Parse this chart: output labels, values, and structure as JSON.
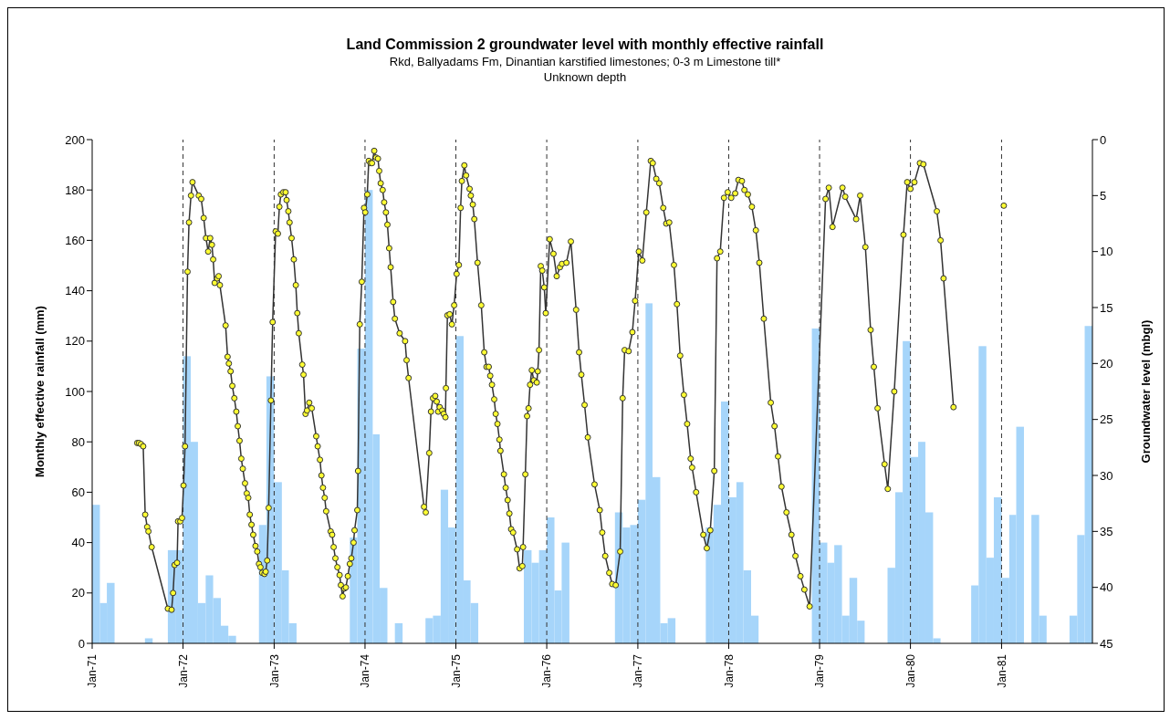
{
  "chart_data": {
    "type": "bar",
    "title": "Land Commission 2 groundwater level with monthly effective rainfall",
    "subtitle": "Rkd, Ballyadams Fm, Dinantian karstified limestones; 0-3 m Limestone till*\nUnknown depth",
    "ylabel": "Monthly effective rainfall (mm)",
    "y2label": "Groundwater level (mbgl)",
    "xlim": [
      "1971-01-01",
      "1982-01-01"
    ],
    "xticks": [
      {
        "value": "1971-01",
        "label": "Jan-71"
      },
      {
        "value": "1972-01",
        "label": "Jan-72"
      },
      {
        "value": "1973-01",
        "label": "Jan-73"
      },
      {
        "value": "1974-01",
        "label": "Jan-74"
      },
      {
        "value": "1975-01",
        "label": "Jan-75"
      },
      {
        "value": "1976-01",
        "label": "Jan-76"
      },
      {
        "value": "1977-01",
        "label": "Jan-77"
      },
      {
        "value": "1978-01",
        "label": "Jan-78"
      },
      {
        "value": "1979-01",
        "label": "Jan-79"
      },
      {
        "value": "1980-01",
        "label": "Jan-80"
      },
      {
        "value": "1981-01",
        "label": "Jan-81"
      }
    ],
    "ylim": [
      0,
      200
    ],
    "yticks": [
      0,
      20,
      40,
      60,
      80,
      100,
      120,
      140,
      160,
      180,
      200
    ],
    "y2lim": [
      45,
      0
    ],
    "y2ticks": [
      0,
      5,
      10,
      15,
      20,
      25,
      30,
      35,
      40,
      45
    ],
    "grid": false,
    "legend": false,
    "marker": "circle",
    "ref_lines": [
      {
        "axis": "x",
        "value": "1972-01",
        "line_style": "dashed",
        "color": "#333333"
      },
      {
        "axis": "x",
        "value": "1973-01",
        "line_style": "dashed",
        "color": "#333333"
      },
      {
        "axis": "x",
        "value": "1974-01",
        "line_style": "dashed",
        "color": "#333333"
      },
      {
        "axis": "x",
        "value": "1975-01",
        "line_style": "dashed",
        "color": "#333333"
      },
      {
        "axis": "x",
        "value": "1976-01",
        "line_style": "dashed",
        "color": "#333333"
      },
      {
        "axis": "x",
        "value": "1977-01",
        "line_style": "dashed",
        "color": "#333333"
      },
      {
        "axis": "x",
        "value": "1978-01",
        "line_style": "dashed",
        "color": "#333333"
      },
      {
        "axis": "x",
        "value": "1979-01",
        "line_style": "dashed",
        "color": "#333333"
      },
      {
        "axis": "x",
        "value": "1980-01",
        "line_style": "dashed",
        "color": "#333333"
      },
      {
        "axis": "x",
        "value": "1981-01",
        "line_style": "dashed",
        "color": "#333333"
      }
    ],
    "series": [
      {
        "color": "#a6d5fa",
        "x": [
          "1971-01",
          "1971-02",
          "1971-03",
          "1971-04",
          "1971-05",
          "1971-06",
          "1971-07",
          "1971-08",
          "1971-09",
          "1971-10",
          "1971-11",
          "1971-12",
          "1972-01",
          "1972-02",
          "1972-03",
          "1972-04",
          "1972-05",
          "1972-06",
          "1972-07",
          "1972-08",
          "1972-09",
          "1972-10",
          "1972-11",
          "1972-12",
          "1973-01",
          "1973-02",
          "1973-03",
          "1973-04",
          "1973-05",
          "1973-06",
          "1973-07",
          "1973-08",
          "1973-09",
          "1973-10",
          "1973-11",
          "1973-12",
          "1974-01",
          "1974-02",
          "1974-03",
          "1974-04",
          "1974-05",
          "1974-06",
          "1974-07",
          "1974-08",
          "1974-09",
          "1974-10",
          "1974-11",
          "1974-12",
          "1975-01",
          "1975-02",
          "1975-03",
          "1975-04",
          "1975-05",
          "1975-06",
          "1975-07",
          "1975-08",
          "1975-09",
          "1975-10",
          "1975-11",
          "1975-12",
          "1976-01",
          "1976-02",
          "1976-03",
          "1976-04",
          "1976-05",
          "1976-06",
          "1976-07",
          "1976-08",
          "1976-09",
          "1976-10",
          "1976-11",
          "1976-12",
          "1977-01",
          "1977-02",
          "1977-03",
          "1977-04",
          "1977-05",
          "1977-06",
          "1977-07",
          "1977-08",
          "1977-09",
          "1977-10",
          "1977-11",
          "1977-12",
          "1978-01",
          "1978-02",
          "1978-03",
          "1978-04",
          "1978-05",
          "1978-06",
          "1978-07",
          "1978-08",
          "1978-09",
          "1978-10",
          "1978-11",
          "1978-12",
          "1979-01",
          "1979-02",
          "1979-03",
          "1979-04",
          "1979-05",
          "1979-06",
          "1979-07",
          "1979-08",
          "1979-09",
          "1979-10",
          "1979-11",
          "1979-12",
          "1980-01",
          "1980-02",
          "1980-03",
          "1980-04",
          "1980-05",
          "1980-06",
          "1980-07",
          "1980-08",
          "1980-09",
          "1980-10",
          "1980-11",
          "1980-12",
          "1981-01",
          "1981-02",
          "1981-03",
          "1981-04",
          "1981-05",
          "1981-06",
          "1981-07",
          "1981-08",
          "1981-09",
          "1981-10",
          "1981-11",
          "1981-12"
        ],
        "values": [
          55,
          16,
          24,
          0,
          0,
          0,
          0,
          2,
          0,
          0,
          37,
          37,
          114,
          80,
          16,
          27,
          18,
          7,
          3,
          0,
          0,
          0,
          47,
          106,
          64,
          29,
          8,
          0,
          0,
          0,
          0,
          0,
          0,
          0,
          42,
          117,
          180,
          83,
          22,
          0,
          8,
          0,
          0,
          0,
          10,
          11,
          61,
          46,
          122,
          25,
          16,
          0,
          0,
          0,
          0,
          0,
          0,
          37,
          32,
          37,
          50,
          21,
          40,
          0,
          0,
          0,
          0,
          0,
          0,
          52,
          46,
          47,
          57,
          135,
          66,
          8,
          10,
          0,
          0,
          0,
          0,
          46,
          55,
          96,
          58,
          64,
          29,
          11,
          0,
          0,
          0,
          0,
          0,
          0,
          0,
          125,
          40,
          32,
          39,
          11,
          26,
          9,
          0,
          0,
          0,
          30,
          60,
          120,
          74,
          80,
          52,
          2,
          0,
          0,
          0,
          0,
          23,
          118,
          34,
          58,
          26,
          51,
          86,
          0,
          51,
          11,
          0,
          0,
          0,
          11,
          43,
          126
        ]
      },
      {
        "type": "line",
        "axis": "y2",
        "color": "#333333",
        "x": [
          "1971-07-01",
          "1971-07-08",
          "1971-07-16",
          "1971-07-25",
          "1971-08-02",
          "1971-08-10",
          "1971-08-15",
          "1971-08-28",
          "1971-11-01",
          "1971-11-16",
          "1971-11-22",
          "1971-11-28",
          "1971-12-08",
          "1971-12-12",
          "1971-12-21",
          "1971-12-28",
          "1972-01-03",
          "1972-01-09",
          "1972-01-19",
          "1972-01-25",
          "1972-02-02",
          "1972-02-08",
          "1972-03-04",
          "1972-03-14",
          "1972-03-24",
          "1972-04-02",
          "1972-04-11",
          "1972-04-19",
          "1972-04-26",
          "1972-05-01",
          "1972-05-07",
          "1972-05-17",
          "1972-05-23",
          "1972-05-28",
          "1972-06-20",
          "1972-06-28",
          "1972-07-03",
          "1972-07-10",
          "1972-07-17",
          "1972-07-25",
          "1972-08-02",
          "1972-08-08",
          "1972-08-15",
          "1972-08-22",
          "1972-08-28",
          "1972-09-06",
          "1972-09-13",
          "1972-09-19",
          "1972-09-25",
          "1972-10-02",
          "1972-10-09",
          "1972-10-18",
          "1972-10-25",
          "1972-11-01",
          "1972-11-07",
          "1972-11-14",
          "1972-11-23",
          "1972-11-28",
          "1972-12-04",
          "1972-12-10",
          "1972-12-19",
          "1972-12-26",
          "1973-01-07",
          "1973-01-16",
          "1973-01-22",
          "1973-01-28",
          "1973-02-07",
          "1973-02-16",
          "1973-02-20",
          "1973-02-27",
          "1973-03-04",
          "1973-03-12",
          "1973-03-21",
          "1973-03-29",
          "1973-04-04",
          "1973-04-10",
          "1973-04-24",
          "1973-04-29",
          "1973-05-07",
          "1973-05-13",
          "1973-05-22",
          "1973-06-01",
          "1973-06-19",
          "1973-06-25",
          "1973-07-04",
          "1973-07-10",
          "1973-07-16",
          "1973-07-23",
          "1973-07-29",
          "1973-08-16",
          "1973-08-22",
          "1973-08-28",
          "1973-09-04",
          "1973-09-12",
          "1973-09-21",
          "1973-09-26",
          "1973-10-03",
          "1973-10-10",
          "1973-10-16",
          "1973-10-24",
          "1973-11-01",
          "1973-11-07",
          "1973-11-16",
          "1973-11-20",
          "1973-12-01",
          "1973-12-04",
          "1973-12-11",
          "1973-12-19",
          "1973-12-28",
          "1974-01-02",
          "1974-01-10",
          "1974-01-16",
          "1974-01-23",
          "1974-01-29",
          "1974-02-07",
          "1974-02-14",
          "1974-02-22",
          "1974-02-27",
          "1974-03-05",
          "1974-03-13",
          "1974-03-19",
          "1974-03-26",
          "1974-04-01",
          "1974-04-08",
          "1974-04-14",
          "1974-04-24",
          "1974-05-01",
          "1974-05-20",
          "1974-06-11",
          "1974-06-17",
          "1974-06-25",
          "1974-08-26",
          "1974-09-02",
          "1974-09-16",
          "1974-09-23",
          "1974-10-01",
          "1974-10-10",
          "1974-10-16",
          "1974-10-22",
          "1974-10-28",
          "1974-11-07",
          "1974-11-13",
          "1974-11-20",
          "1974-11-22",
          "1974-11-28",
          "1974-12-07",
          "1974-12-16",
          "1974-12-25",
          "1975-01-04",
          "1975-01-13",
          "1975-01-20",
          "1975-01-25",
          "1975-02-04",
          "1975-02-11",
          "1975-02-25",
          "1975-03-02",
          "1975-03-10",
          "1975-03-16",
          "1975-03-29",
          "1975-04-13",
          "1975-04-25",
          "1975-05-04",
          "1975-05-13",
          "1975-05-19",
          "1975-05-26",
          "1975-06-04",
          "1975-06-10",
          "1975-06-17",
          "1975-06-25",
          "1975-06-29",
          "1975-07-13",
          "1975-07-20",
          "1975-07-28",
          "1975-08-04",
          "1975-08-11",
          "1975-08-19",
          "1975-09-04",
          "1975-09-14",
          "1975-09-25",
          "1975-09-28",
          "1975-10-07",
          "1975-10-14",
          "1975-10-20",
          "1975-10-26",
          "1975-11-02",
          "1975-11-10",
          "1975-11-22",
          "1975-11-26",
          "1975-12-01",
          "1975-12-08",
          "1975-12-14",
          "1975-12-22",
          "1975-12-28",
          "1976-01-13",
          "1976-01-28",
          "1976-02-10",
          "1976-02-23",
          "1976-03-02",
          "1976-03-20",
          "1976-04-07",
          "1976-04-28",
          "1976-05-10",
          "1976-05-19",
          "1976-06-01",
          "1976-06-14",
          "1976-07-11",
          "1976-08-01",
          "1976-08-11",
          "1976-08-23",
          "1976-09-08",
          "1976-09-20",
          "1976-10-04",
          "1976-10-22",
          "1976-11-01",
          "1976-11-09",
          "1976-11-25",
          "1976-12-10",
          "1976-12-21",
          "1977-01-05",
          "1977-01-19",
          "1977-02-04",
          "1977-02-22",
          "1977-03-02",
          "1977-03-16",
          "1977-03-28",
          "1977-04-13",
          "1977-04-25",
          "1977-05-07",
          "1977-05-26",
          "1977-06-07",
          "1977-06-20",
          "1977-07-05",
          "1977-07-18",
          "1977-08-01",
          "1977-08-07",
          "1977-08-23",
          "1977-09-21",
          "1977-10-05",
          "1977-10-19",
          "1977-11-04",
          "1977-11-15",
          "1977-11-28",
          "1977-12-13",
          "1977-12-28",
          "1978-01-11",
          "1978-01-27",
          "1978-02-09",
          "1978-02-23",
          "1978-03-05",
          "1978-03-19",
          "1978-04-04",
          "1978-04-20",
          "1978-05-04",
          "1978-05-22",
          "1978-06-19",
          "1978-07-04",
          "1978-07-18",
          "1978-08-01",
          "1978-08-21",
          "1978-09-10",
          "1978-09-26",
          "1978-10-16",
          "1978-11-01",
          "1978-11-22",
          "1979-01-25",
          "1979-02-07",
          "1979-02-22",
          "1979-04-03",
          "1979-04-14",
          "1979-05-28",
          "1979-06-13",
          "1979-07-04",
          "1979-07-25",
          "1979-08-07",
          "1979-08-22",
          "1979-09-19",
          "1979-10-02",
          "1979-10-28",
          "1979-12-04",
          "1979-12-19",
          "1980-01-01",
          "1980-01-17",
          "1980-02-08",
          "1980-02-22",
          "1980-04-16",
          "1980-05-01",
          "1980-05-13",
          "1980-06-22",
          "1980-09-01",
          "1981-01-10"
        ],
        "values": [
          27.1,
          27.1,
          27.2,
          27.4,
          33.5,
          34.6,
          35.0,
          36.4,
          41.9,
          42.0,
          40.5,
          38.0,
          37.8,
          34.1,
          34.1,
          33.8,
          30.9,
          27.4,
          11.8,
          7.4,
          5.0,
          3.8,
          5.0,
          5.3,
          7.0,
          8.8,
          10.0,
          8.8,
          9.4,
          10.7,
          12.8,
          12.4,
          12.2,
          13.0,
          16.6,
          19.4,
          20.0,
          20.7,
          22.0,
          23.1,
          24.3,
          25.6,
          26.9,
          28.5,
          29.4,
          30.7,
          31.6,
          32.0,
          33.5,
          34.4,
          35.3,
          36.3,
          36.8,
          37.9,
          38.2,
          38.7,
          38.8,
          38.6,
          37.6,
          32.9,
          23.3,
          16.3,
          8.2,
          8.4,
          6.0,
          4.9,
          4.7,
          4.7,
          5.4,
          6.4,
          7.4,
          8.8,
          10.7,
          13.0,
          15.5,
          17.3,
          20.1,
          21.0,
          24.5,
          24.2,
          23.5,
          24.0,
          26.5,
          27.4,
          28.6,
          30.0,
          31.1,
          32.0,
          33.2,
          35.0,
          35.3,
          36.4,
          37.4,
          38.2,
          38.9,
          39.8,
          40.8,
          40.1,
          40.0,
          39.0,
          37.9,
          37.4,
          36.0,
          34.9,
          33.1,
          29.6,
          16.5,
          12.7,
          6.1,
          6.5,
          4.9,
          1.9,
          2.1,
          2.1,
          1.0,
          1.6,
          1.7,
          2.8,
          3.9,
          4.5,
          5.6,
          6.5,
          7.6,
          9.7,
          11.4,
          14.5,
          16.0,
          17.3,
          18.0,
          19.7,
          21.3,
          32.8,
          33.3,
          28.0,
          24.3,
          23.1,
          22.9,
          23.4,
          24.3,
          23.9,
          24.2,
          24.5,
          24.8,
          22.2,
          15.7,
          15.6,
          16.5,
          14.8,
          12.0,
          11.2,
          6.1,
          3.7,
          2.3,
          3.2,
          4.4,
          5.0,
          5.8,
          7.1,
          11.0,
          14.8,
          19.0,
          20.3,
          20.3,
          21.1,
          21.9,
          23.2,
          24.5,
          25.4,
          26.8,
          27.8,
          29.9,
          31.1,
          32.2,
          33.4,
          34.8,
          35.1,
          36.6,
          38.3,
          38.1,
          36.4,
          29.9,
          24.7,
          24.0,
          21.9,
          20.6,
          21.5,
          21.7,
          20.7,
          18.8,
          11.3,
          11.7,
          13.2,
          15.5,
          8.9,
          10.2,
          12.2,
          11.4,
          11.1,
          11.0,
          9.1,
          15.2,
          19.0,
          21.0,
          23.7,
          26.6,
          30.8,
          33.1,
          35.1,
          37.2,
          38.7,
          39.7,
          39.8,
          36.8,
          23.1,
          18.8,
          18.9,
          17.2,
          14.4,
          10.0,
          10.8,
          6.5,
          1.9,
          2.1,
          3.5,
          3.9,
          6.1,
          7.5,
          7.4,
          11.2,
          14.7,
          19.3,
          22.8,
          25.4,
          28.5,
          29.3,
          31.5,
          35.3,
          36.5,
          34.9,
          29.6,
          10.6,
          10.0,
          5.2,
          4.7,
          5.2,
          4.8,
          3.6,
          3.7,
          4.5,
          4.9,
          6.0,
          8.1,
          11.0,
          16.0,
          23.5,
          25.6,
          28.3,
          31.0,
          33.3,
          35.3,
          37.2,
          39.0,
          40.2,
          41.7,
          5.3,
          4.3,
          7.8,
          4.3,
          5.1,
          7.1,
          5.0,
          9.6,
          17.0,
          20.3,
          24.0,
          29.0,
          31.2,
          22.5,
          8.5,
          3.8,
          4.4,
          3.8,
          2.1,
          2.2,
          6.4,
          9.0,
          12.4,
          23.9,
          null,
          5.9
        ]
      }
    ]
  }
}
